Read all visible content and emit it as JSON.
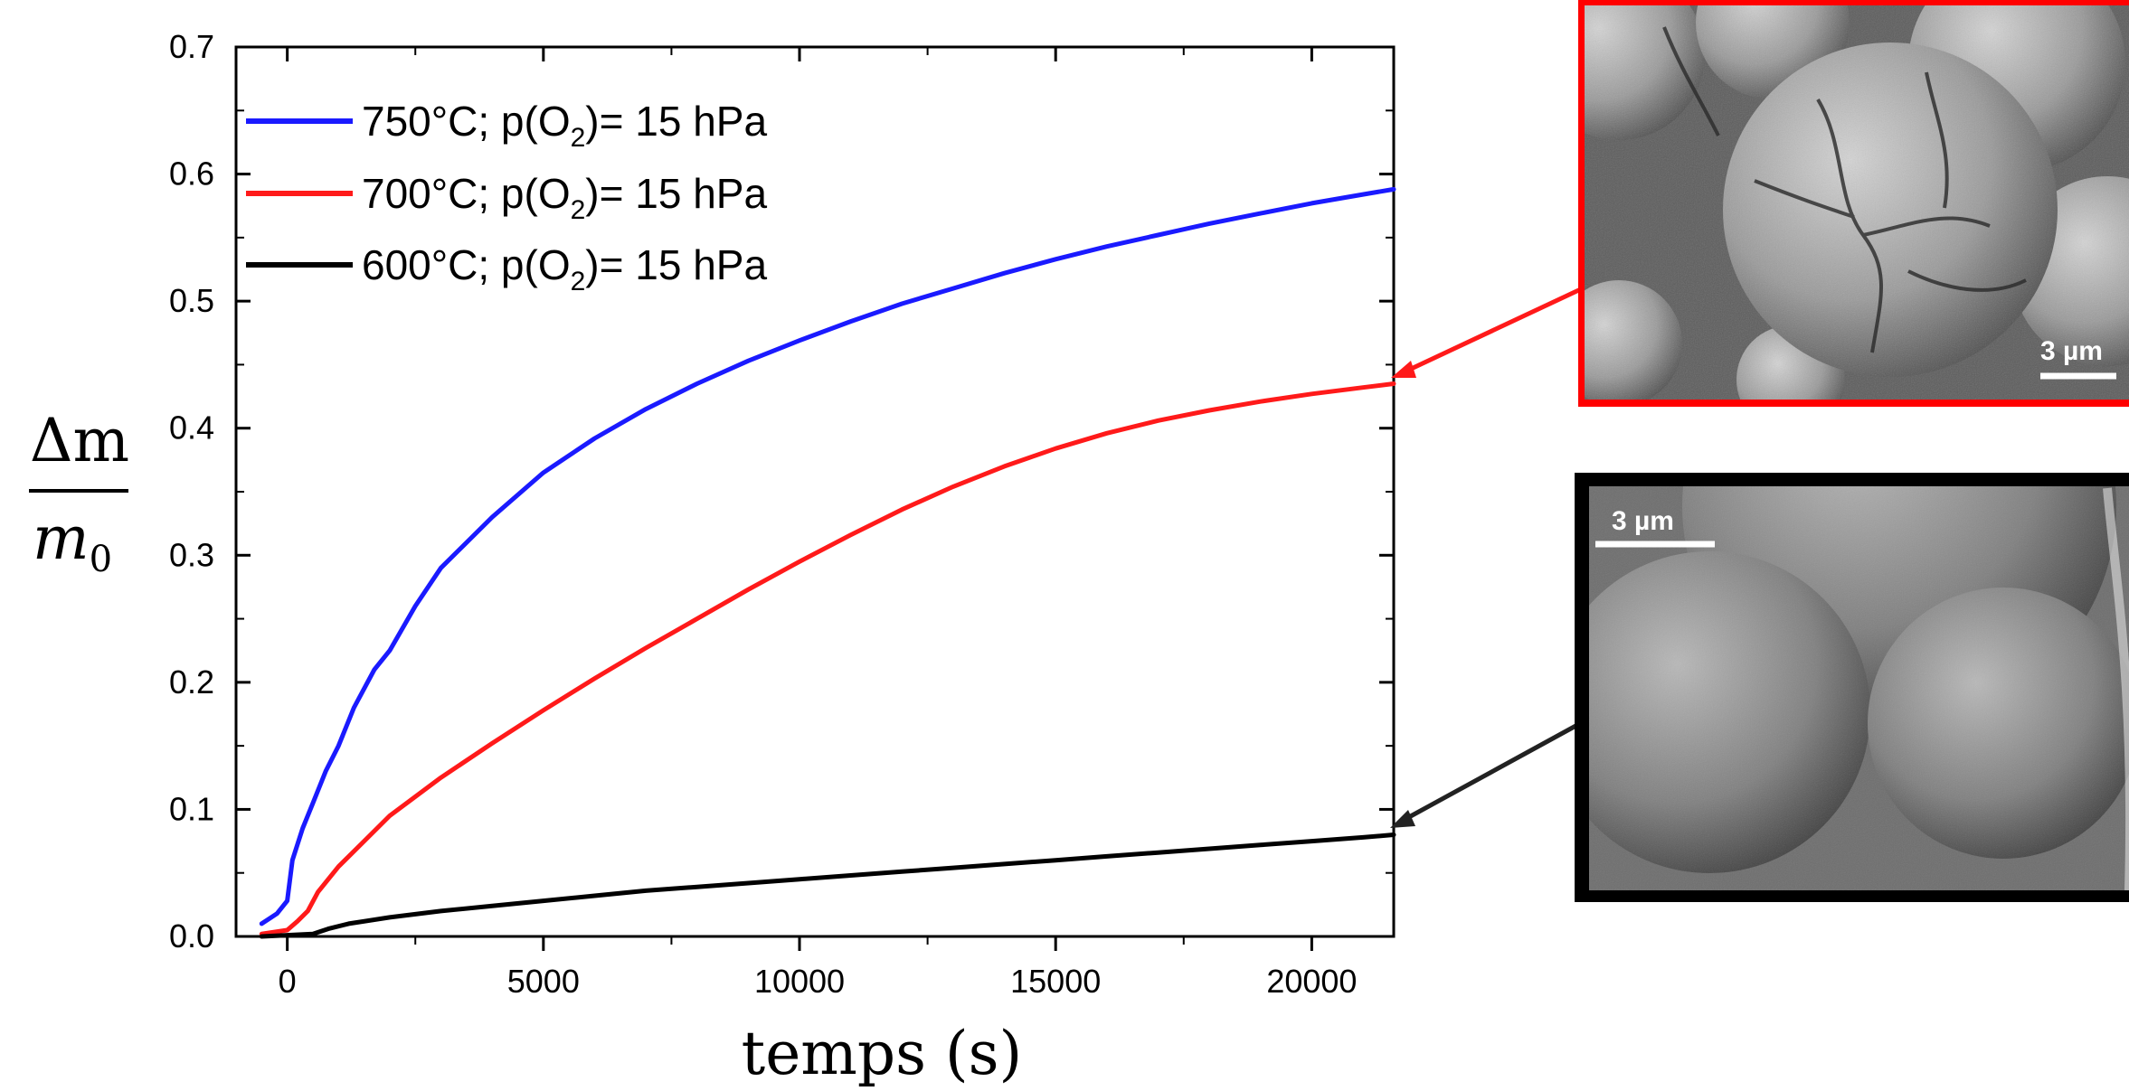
{
  "chart_data": {
    "type": "line",
    "xlabel": "temps (s)",
    "ylabel": {
      "numerator": "Δm",
      "denominator": "m",
      "denominator_subscript": "0"
    },
    "xlim": [
      -1000,
      21600
    ],
    "ylim": [
      0,
      0.7
    ],
    "x_ticks": [
      0,
      5000,
      10000,
      15000,
      20000
    ],
    "x_tick_labels": [
      "0",
      "5000",
      "10000",
      "15000",
      "20000"
    ],
    "y_ticks": [
      0.0,
      0.1,
      0.2,
      0.3,
      0.4,
      0.5,
      0.6,
      0.7
    ],
    "y_tick_labels": [
      "0.0",
      "0.1",
      "0.2",
      "0.3",
      "0.4",
      "0.5",
      "0.6",
      "0.7"
    ],
    "grid": false,
    "legend_position": "top-left",
    "series": [
      {
        "name": "750°C; p(O2)= 15 hPa",
        "legend": {
          "prefix": "750°C; p(O",
          "sub": "2",
          "suffix": ")= 15 hPa"
        },
        "color": "#1a1aff",
        "x": [
          -500,
          -200,
          0,
          100,
          300,
          500,
          750,
          1000,
          1300,
          1700,
          2000,
          2500,
          3000,
          4000,
          5000,
          6000,
          7000,
          8000,
          9000,
          10000,
          11000,
          12000,
          13000,
          14000,
          15000,
          16000,
          17000,
          18000,
          19000,
          20000,
          21000,
          21600
        ],
        "y": [
          0.01,
          0.018,
          0.028,
          0.06,
          0.085,
          0.105,
          0.13,
          0.15,
          0.18,
          0.21,
          0.225,
          0.26,
          0.29,
          0.33,
          0.365,
          0.392,
          0.415,
          0.435,
          0.453,
          0.469,
          0.484,
          0.498,
          0.51,
          0.522,
          0.533,
          0.543,
          0.552,
          0.561,
          0.569,
          0.577,
          0.584,
          0.588
        ]
      },
      {
        "name": "700°C; p(O2)= 15 hPa",
        "legend": {
          "prefix": "700°C; p(O",
          "sub": "2",
          "suffix": ")= 15 hPa"
        },
        "color": "#ff1a1a",
        "x": [
          -500,
          0,
          200,
          400,
          600,
          1000,
          1500,
          2000,
          3000,
          4000,
          5000,
          6000,
          7000,
          8000,
          9000,
          10000,
          11000,
          12000,
          13000,
          14000,
          15000,
          16000,
          17000,
          18000,
          19000,
          20000,
          21000,
          21600
        ],
        "y": [
          0.002,
          0.005,
          0.012,
          0.02,
          0.035,
          0.055,
          0.075,
          0.095,
          0.125,
          0.152,
          0.178,
          0.203,
          0.227,
          0.25,
          0.273,
          0.295,
          0.316,
          0.336,
          0.354,
          0.37,
          0.384,
          0.396,
          0.406,
          0.414,
          0.421,
          0.427,
          0.432,
          0.435
        ]
      },
      {
        "name": "600°C; p(O2)= 15 hPa",
        "legend": {
          "prefix": "600°C; p(O",
          "sub": "2",
          "suffix": ")= 15 hPa"
        },
        "color": "#000000",
        "x": [
          -500,
          0,
          500,
          800,
          1200,
          2000,
          3000,
          4000,
          5000,
          6000,
          7000,
          8000,
          9000,
          10000,
          11000,
          12000,
          13000,
          14000,
          15000,
          16000,
          17000,
          18000,
          19000,
          20000,
          21000,
          21600
        ],
        "y": [
          0.0,
          0.001,
          0.002,
          0.006,
          0.01,
          0.015,
          0.02,
          0.024,
          0.028,
          0.032,
          0.036,
          0.039,
          0.042,
          0.045,
          0.048,
          0.051,
          0.054,
          0.057,
          0.06,
          0.063,
          0.066,
          0.069,
          0.072,
          0.075,
          0.078,
          0.08
        ]
      }
    ],
    "annotations": [
      {
        "name": "red-arrow",
        "color": "#ff1a1a",
        "points_to": {
          "series": 1,
          "x": 21600,
          "y": 0.435
        }
      },
      {
        "name": "black-arrow",
        "color": "#222222",
        "points_to": {
          "series": 2,
          "x": 21600,
          "y": 0.08
        }
      }
    ]
  },
  "insets": [
    {
      "name": "sem-image-700C",
      "border_color": "#ff1a1a",
      "scale_bar_label": "3 µm",
      "scale_position": "bottom-right",
      "texture": "cracked"
    },
    {
      "name": "sem-image-600C",
      "border_color": "#000000",
      "scale_bar_label": "3 µm",
      "scale_position": "top-left",
      "texture": "smooth"
    }
  ]
}
